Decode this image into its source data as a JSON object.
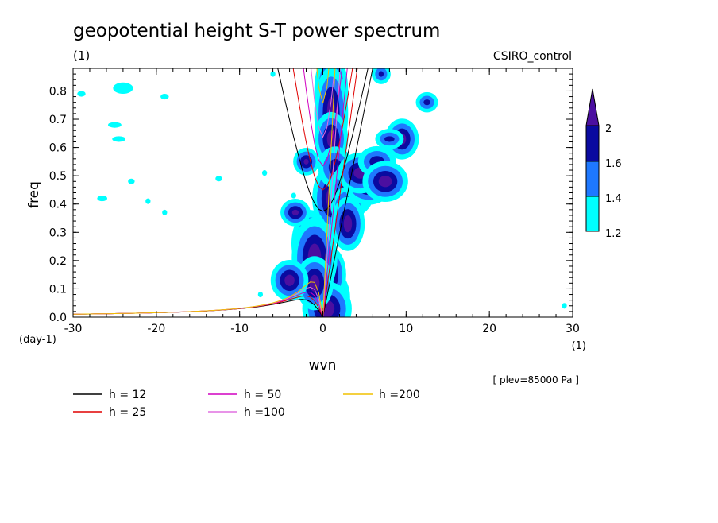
{
  "chart_data": {
    "type": "heatmap",
    "title": "geopotential height S-T power spectrum",
    "y_unit_top": "(1)",
    "model_label": "CSIRO_control",
    "xlabel": "wvn",
    "ylabel": "freq",
    "x_unit_bottom_left": "(day-1)",
    "x_unit_bottom_right": "(1)",
    "level_note": "[ plev=85000 Pa ]",
    "xlim": [
      -30,
      30
    ],
    "ylim": [
      0,
      0.88
    ],
    "x_ticks": [
      "-30",
      "-20",
      "-10",
      "0",
      "10",
      "20",
      "30"
    ],
    "y_ticks": [
      "0.0",
      "0.1",
      "0.2",
      "0.3",
      "0.4",
      "0.5",
      "0.6",
      "0.7",
      "0.8"
    ],
    "colorbar": {
      "levels": [
        "1.2",
        "1.4",
        "1.6",
        "2"
      ],
      "colors": [
        "#00ffff",
        "#1e78ff",
        "#0a0aa0",
        "#4b0fa0"
      ]
    },
    "dispersion_curves": [
      {
        "name": "h = 12",
        "h": 12,
        "color": "#000000"
      },
      {
        "name": "h = 25",
        "h": 25,
        "color": "#e00000"
      },
      {
        "name": "h = 50",
        "h": 50,
        "color": "#d000c0"
      },
      {
        "name": "h =100",
        "h": 100,
        "color": "#e070e0"
      },
      {
        "name": "h =200",
        "h": 200,
        "color": "#f0c000"
      }
    ],
    "power_blobs": [
      {
        "x": 1.0,
        "y": 0.8,
        "level": 3,
        "w": 0.5,
        "h": 0.05
      },
      {
        "x": 1.0,
        "y": 0.72,
        "level": 3,
        "w": 0.5,
        "h": 0.06
      },
      {
        "x": 1.0,
        "y": 0.63,
        "level": 3,
        "w": 0.5,
        "h": 0.03
      },
      {
        "x": 1.0,
        "y": 0.42,
        "level": 3,
        "w": 0.6,
        "h": 0.04
      },
      {
        "x": 1.5,
        "y": 0.53,
        "level": 2,
        "w": 0.8,
        "h": 0.03
      },
      {
        "x": 1.0,
        "y": 0.07,
        "level": 3,
        "w": 0.6,
        "h": 0.03
      },
      {
        "x": 1.0,
        "y": 0.15,
        "level": 3,
        "w": 0.4,
        "h": 0.03
      },
      {
        "x": 0.5,
        "y": 0.03,
        "level": 3,
        "w": 0.9,
        "h": 0.03
      },
      {
        "x": -1.5,
        "y": 0.26,
        "level": 3,
        "w": 0.6,
        "h": 0.04
      },
      {
        "x": -1.0,
        "y": 0.21,
        "level": 3,
        "w": 0.8,
        "h": 0.05
      },
      {
        "x": -1.0,
        "y": 0.12,
        "level": 3,
        "w": 0.6,
        "h": 0.03
      },
      {
        "x": -4.0,
        "y": 0.13,
        "level": 3,
        "w": 0.6,
        "h": 0.02
      },
      {
        "x": -3.3,
        "y": 0.37,
        "level": 3,
        "w": 0.4,
        "h": 0.01
      },
      {
        "x": -2.0,
        "y": 0.55,
        "level": 3,
        "w": 0.3,
        "h": 0.01
      },
      {
        "x": 3.5,
        "y": 0.45,
        "level": 3,
        "w": 0.8,
        "h": 0.03
      },
      {
        "x": 3.0,
        "y": 0.39,
        "level": 3,
        "w": 0.5,
        "h": 0.02
      },
      {
        "x": 3.0,
        "y": 0.33,
        "level": 3,
        "w": 0.5,
        "h": 0.03
      },
      {
        "x": 5.5,
        "y": 0.47,
        "level": 3,
        "w": 0.9,
        "h": 0.02
      },
      {
        "x": 4.5,
        "y": 0.51,
        "level": 3,
        "w": 0.8,
        "h": 0.02
      },
      {
        "x": 6.5,
        "y": 0.55,
        "level": 2,
        "w": 0.9,
        "h": 0.02
      },
      {
        "x": 7.5,
        "y": 0.48,
        "level": 3,
        "w": 0.8,
        "h": 0.02
      },
      {
        "x": 9.5,
        "y": 0.63,
        "level": 3,
        "w": 0.5,
        "h": 0.02
      },
      {
        "x": 8.0,
        "y": 0.63,
        "level": 2,
        "w": 0.6,
        "h": 0.01
      },
      {
        "x": 12.5,
        "y": 0.76,
        "level": 2,
        "w": 0.4,
        "h": 0.01
      },
      {
        "x": 7.0,
        "y": 0.86,
        "level": 2,
        "w": 0.3,
        "h": 0.01
      },
      {
        "x": -24.0,
        "y": 0.81,
        "level": 0,
        "w": 1.2,
        "h": 0.02
      },
      {
        "x": -29.0,
        "y": 0.79,
        "level": 0,
        "w": 0.5,
        "h": 0.01
      },
      {
        "x": -25.0,
        "y": 0.68,
        "level": 0,
        "w": 0.8,
        "h": 0.01
      },
      {
        "x": -24.5,
        "y": 0.63,
        "level": 0,
        "w": 0.8,
        "h": 0.01
      },
      {
        "x": -19.0,
        "y": 0.78,
        "level": 0,
        "w": 0.5,
        "h": 0.01
      },
      {
        "x": -23.0,
        "y": 0.48,
        "level": 0,
        "w": 0.4,
        "h": 0.01
      },
      {
        "x": -26.5,
        "y": 0.42,
        "level": 0,
        "w": 0.6,
        "h": 0.01
      },
      {
        "x": -21.0,
        "y": 0.41,
        "level": 0,
        "w": 0.3,
        "h": 0.01
      },
      {
        "x": -12.5,
        "y": 0.49,
        "level": 0,
        "w": 0.4,
        "h": 0.01
      },
      {
        "x": -7.0,
        "y": 0.51,
        "level": 0,
        "w": 0.3,
        "h": 0.01
      },
      {
        "x": -3.5,
        "y": 0.43,
        "level": 0,
        "w": 0.3,
        "h": 0.01
      },
      {
        "x": -7.5,
        "y": 0.08,
        "level": 0,
        "w": 0.3,
        "h": 0.01
      },
      {
        "x": -19.0,
        "y": 0.37,
        "level": 0,
        "w": 0.3,
        "h": 0.01
      },
      {
        "x": -6.0,
        "y": 0.86,
        "level": 0,
        "w": 0.3,
        "h": 0.01
      },
      {
        "x": 29.0,
        "y": 0.04,
        "level": 0,
        "w": 0.3,
        "h": 0.01
      }
    ]
  }
}
